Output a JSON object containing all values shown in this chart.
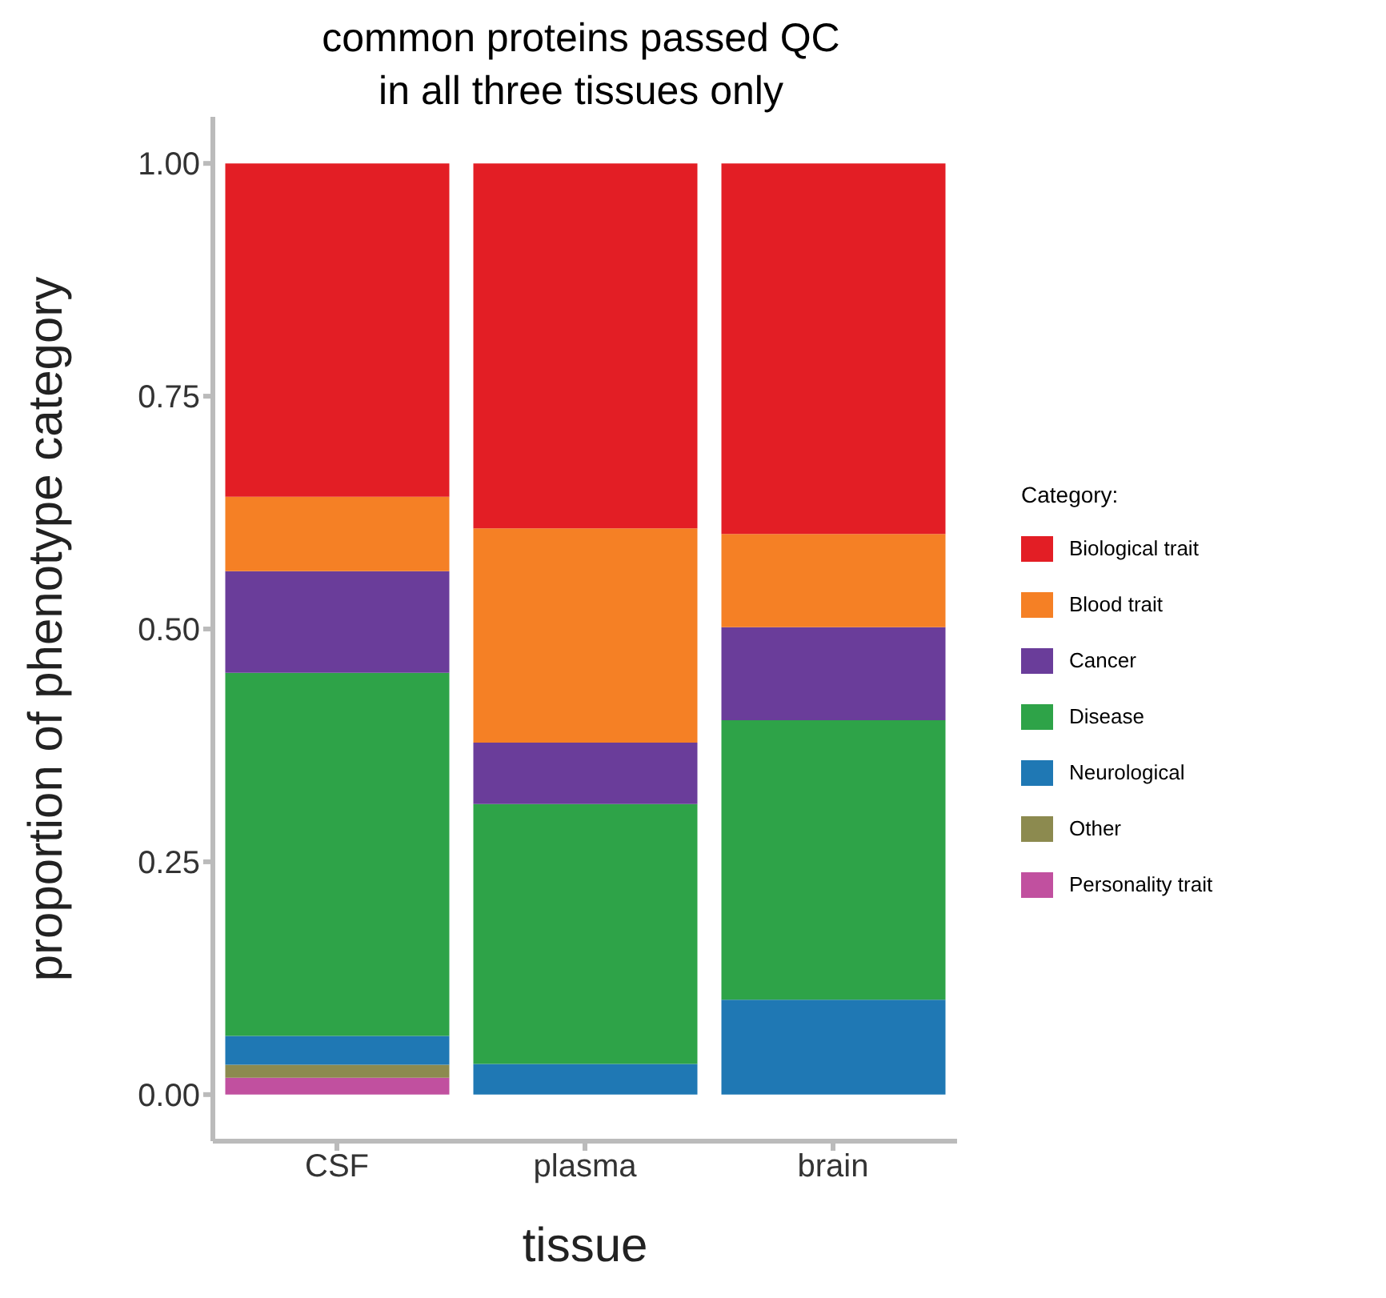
{
  "chart_data": {
    "type": "bar",
    "title": "common proteins passed QC in all three tissues only",
    "xlabel": "tissue",
    "ylabel": "proportion of phenotype category",
    "legend_title": "Category:",
    "categories": [
      "CSF",
      "plasma",
      "brain"
    ],
    "stacked": true,
    "legend": "right",
    "ylim": [
      -0.05,
      1.05
    ],
    "yticks": [
      {
        "value": 0,
        "label": "0.00"
      },
      0.25,
      {
        "value": 0.5,
        "label": "0.50"
      },
      0.75,
      {
        "value": 1,
        "label": "1.00"
      }
    ],
    "series": [
      {
        "name": "Personality trait",
        "color": "#c1509f",
        "values": [
          0.018,
          0,
          0
        ]
      },
      {
        "name": "Other",
        "color": "#8c8a4f",
        "values": [
          0.014,
          0,
          0
        ]
      },
      {
        "name": "Neurological",
        "color": "#1f78b4",
        "values": [
          0.031,
          0.033,
          0.102
        ]
      },
      {
        "name": "Disease",
        "color": "#2ea348",
        "values": [
          0.39,
          0.279,
          0.3
        ]
      },
      {
        "name": "Cancer",
        "color": "#6a3d9a",
        "values": [
          0.109,
          0.066,
          0.1
        ]
      },
      {
        "name": "Blood trait",
        "color": "#f58025",
        "values": [
          0.08,
          0.23,
          0.1
        ]
      },
      {
        "name": "Biological trait",
        "color": "#e31e25",
        "values": [
          0.358,
          0.392,
          0.398
        ]
      }
    ]
  }
}
